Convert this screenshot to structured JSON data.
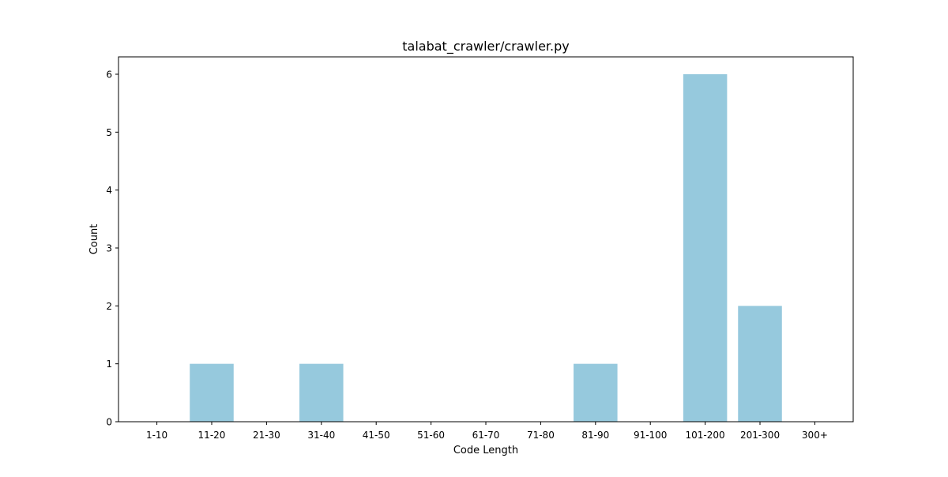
{
  "chart_data": {
    "type": "bar",
    "title": "talabat_crawler/crawler.py",
    "xlabel": "Code Length",
    "ylabel": "Count",
    "categories": [
      "1-10",
      "11-20",
      "21-30",
      "31-40",
      "41-50",
      "51-60",
      "61-70",
      "71-80",
      "81-90",
      "91-100",
      "101-200",
      "201-300",
      "300+"
    ],
    "values": [
      0,
      1,
      0,
      1,
      0,
      0,
      0,
      0,
      1,
      0,
      6,
      2,
      0
    ],
    "ylim": [
      0,
      6.3
    ],
    "yticks": [
      0,
      1,
      2,
      3,
      4,
      5,
      6
    ],
    "bar_color": "#96c9dd",
    "grid": false,
    "legend": "none"
  }
}
